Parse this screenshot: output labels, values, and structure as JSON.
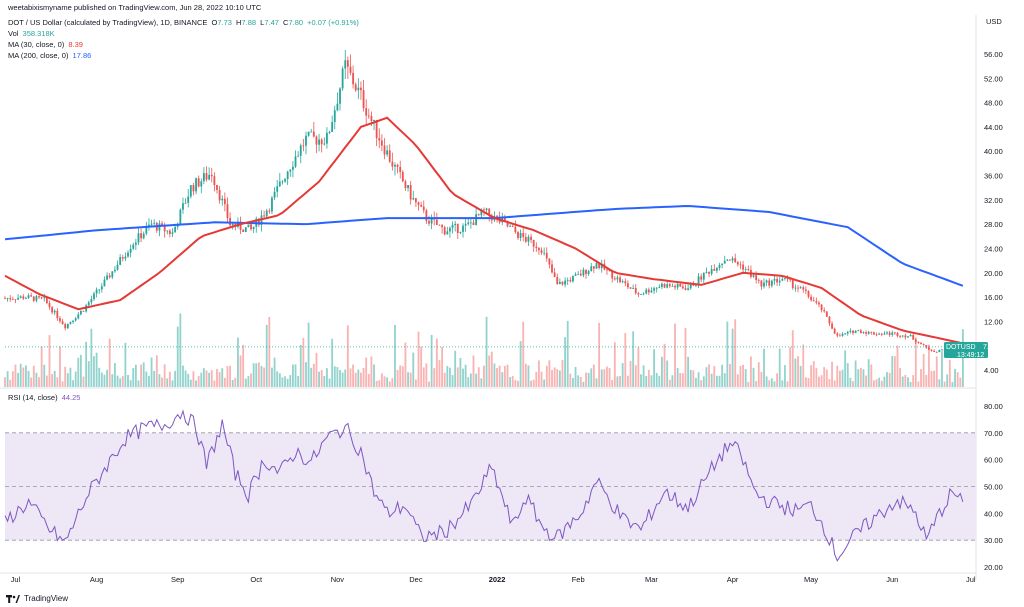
{
  "byline": "weetabixismyname published on TradingView.com, Jun 28, 2022 10:10 UTC",
  "legend": {
    "title": "DOT / US Dollar (calculated by TradingView), 1D, BINANCE",
    "o_label": "O",
    "o": "7.73",
    "h_label": "H",
    "h": "7.88",
    "l_label": "L",
    "l": "7.47",
    "c_label": "C",
    "c": "7.80",
    "change": "+0.07 (+0.91%)",
    "vol_label": "Vol",
    "vol": "358.318K",
    "ma30_label": "MA (30, close, 0)",
    "ma30": "8.39",
    "ma200_label": "MA (200, close, 0)",
    "ma200": "17.86",
    "rsi_label": "RSI (14, close)",
    "rsi": "44.25"
  },
  "price_tag": {
    "symbol": "DOTUSD",
    "price": "7.80",
    "countdown": "13:49:12"
  },
  "footer_brand": "TradingView",
  "colors": {
    "up": "#26a69a",
    "down": "#ef5350",
    "up_vol": "#80cbc4",
    "down_vol": "#f7a6a4",
    "ma30": "#e53935",
    "ma200": "#2962ff",
    "rsi_line": "#7e57c2",
    "rsi_band": "#ede7f6"
  },
  "chart_data": [
    {
      "type": "candlestick",
      "title": "DOT / US Dollar (calculated by TradingView), 1D, BINANCE",
      "currency_label": "USD",
      "y_ticks": [
        "56.00",
        "52.00",
        "48.00",
        "44.00",
        "40.00",
        "36.00",
        "32.00",
        "28.00",
        "24.00",
        "20.00",
        "16.00",
        "12.00",
        "4.00"
      ],
      "x_ticks": [
        "Jul",
        "Aug",
        "Sep",
        "Oct",
        "Nov",
        "Dec",
        "2022",
        "Feb",
        "Mar",
        "Apr",
        "May",
        "Jun",
        "Jul"
      ],
      "x_range": [
        "2021-06-27",
        "2022-07-03"
      ],
      "price_anchors": [
        [
          "2021-06-27",
          15.8
        ],
        [
          "2021-07-05",
          16.0
        ],
        [
          "2021-07-12",
          15.5
        ],
        [
          "2021-07-20",
          11.2
        ],
        [
          "2021-07-27",
          14.0
        ],
        [
          "2021-08-05",
          19.0
        ],
        [
          "2021-08-14",
          24.5
        ],
        [
          "2021-08-22",
          28.0
        ],
        [
          "2021-08-30",
          26.5
        ],
        [
          "2021-09-06",
          34.0
        ],
        [
          "2021-09-14",
          36.5
        ],
        [
          "2021-09-21",
          28.0
        ],
        [
          "2021-09-29",
          27.0
        ],
        [
          "2021-10-06",
          31.0
        ],
        [
          "2021-10-13",
          37.0
        ],
        [
          "2021-10-20",
          42.0
        ],
        [
          "2021-10-28",
          42.0
        ],
        [
          "2021-11-04",
          54.0
        ],
        [
          "2021-11-10",
          49.0
        ],
        [
          "2021-11-15",
          44.0
        ],
        [
          "2021-11-22",
          38.0
        ],
        [
          "2021-11-30",
          32.0
        ],
        [
          "2021-12-05",
          29.0
        ],
        [
          "2021-12-12",
          27.0
        ],
        [
          "2021-12-20",
          27.5
        ],
        [
          "2021-12-27",
          30.0
        ],
        [
          "2022-01-04",
          28.0
        ],
        [
          "2022-01-10",
          26.0
        ],
        [
          "2022-01-18",
          24.0
        ],
        [
          "2022-01-24",
          18.0
        ],
        [
          "2022-02-01",
          19.5
        ],
        [
          "2022-02-08",
          21.5
        ],
        [
          "2022-02-16",
          19.0
        ],
        [
          "2022-02-24",
          16.5
        ],
        [
          "2022-03-05",
          18.0
        ],
        [
          "2022-03-15",
          17.5
        ],
        [
          "2022-03-22",
          20.0
        ],
        [
          "2022-03-30",
          22.5
        ],
        [
          "2022-04-05",
          21.0
        ],
        [
          "2022-04-12",
          18.0
        ],
        [
          "2022-04-20",
          19.0
        ],
        [
          "2022-04-28",
          17.0
        ],
        [
          "2022-05-05",
          14.0
        ],
        [
          "2022-05-11",
          9.5
        ],
        [
          "2022-05-18",
          10.5
        ],
        [
          "2022-05-25",
          10.0
        ],
        [
          "2022-06-01",
          10.0
        ],
        [
          "2022-06-08",
          9.5
        ],
        [
          "2022-06-14",
          7.6
        ],
        [
          "2022-06-18",
          7.0
        ],
        [
          "2022-06-24",
          8.0
        ],
        [
          "2022-06-28",
          7.8
        ]
      ],
      "ma30_anchors": [
        [
          "2021-06-27",
          19.5
        ],
        [
          "2021-07-10",
          16.5
        ],
        [
          "2021-07-25",
          14.0
        ],
        [
          "2021-08-10",
          15.5
        ],
        [
          "2021-08-25",
          20.0
        ],
        [
          "2021-09-10",
          26.0
        ],
        [
          "2021-09-25",
          28.0
        ],
        [
          "2021-10-10",
          29.5
        ],
        [
          "2021-10-25",
          35.0
        ],
        [
          "2021-11-10",
          44.0
        ],
        [
          "2021-11-20",
          45.5
        ],
        [
          "2021-12-01",
          41.0
        ],
        [
          "2021-12-15",
          33.0
        ],
        [
          "2021-12-31",
          29.0
        ],
        [
          "2022-01-15",
          27.0
        ],
        [
          "2022-01-31",
          24.0
        ],
        [
          "2022-02-15",
          20.0
        ],
        [
          "2022-03-01",
          19.0
        ],
        [
          "2022-03-20",
          18.0
        ],
        [
          "2022-04-05",
          20.0
        ],
        [
          "2022-04-20",
          19.5
        ],
        [
          "2022-05-05",
          17.5
        ],
        [
          "2022-05-20",
          13.0
        ],
        [
          "2022-06-05",
          10.5
        ],
        [
          "2022-06-28",
          8.39
        ]
      ],
      "ma200_anchors": [
        [
          "2021-06-27",
          25.5
        ],
        [
          "2021-08-01",
          27.0
        ],
        [
          "2021-09-15",
          28.3
        ],
        [
          "2021-10-20",
          28.0
        ],
        [
          "2021-11-20",
          29.0
        ],
        [
          "2021-12-31",
          29.0
        ],
        [
          "2022-02-15",
          30.5
        ],
        [
          "2022-03-15",
          31.0
        ],
        [
          "2022-04-15",
          30.0
        ],
        [
          "2022-05-15",
          27.5
        ],
        [
          "2022-06-05",
          21.5
        ],
        [
          "2022-06-28",
          17.86
        ]
      ]
    },
    {
      "type": "line",
      "title": "RSI (14, close)",
      "y_ticks": [
        "80.00",
        "70.00",
        "60.00",
        "50.00",
        "40.00",
        "30.00",
        "20.00"
      ],
      "bands": [
        30,
        50,
        70
      ],
      "rsi_anchors": [
        [
          "2021-06-27",
          37
        ],
        [
          "2021-07-06",
          44
        ],
        [
          "2021-07-14",
          34
        ],
        [
          "2021-07-20",
          29
        ],
        [
          "2021-07-28",
          46
        ],
        [
          "2021-08-05",
          58
        ],
        [
          "2021-08-12",
          68
        ],
        [
          "2021-08-20",
          72
        ],
        [
          "2021-08-27",
          73
        ],
        [
          "2021-09-03",
          78
        ],
        [
          "2021-09-08",
          72
        ],
        [
          "2021-09-12",
          58
        ],
        [
          "2021-09-18",
          73
        ],
        [
          "2021-09-23",
          55
        ],
        [
          "2021-09-28",
          47
        ],
        [
          "2021-10-04",
          60
        ],
        [
          "2021-10-10",
          55
        ],
        [
          "2021-10-16",
          63
        ],
        [
          "2021-10-22",
          59
        ],
        [
          "2021-10-28",
          68
        ],
        [
          "2021-11-04",
          72
        ],
        [
          "2021-11-10",
          63
        ],
        [
          "2021-11-15",
          48
        ],
        [
          "2021-11-20",
          40
        ],
        [
          "2021-11-27",
          43
        ],
        [
          "2021-12-03",
          31
        ],
        [
          "2021-12-12",
          33
        ],
        [
          "2021-12-22",
          43
        ],
        [
          "2021-12-30",
          57
        ],
        [
          "2022-01-07",
          35
        ],
        [
          "2022-01-12",
          46
        ],
        [
          "2022-01-19",
          34
        ],
        [
          "2022-01-24",
          31
        ],
        [
          "2022-02-02",
          40
        ],
        [
          "2022-02-08",
          52
        ],
        [
          "2022-02-18",
          38
        ],
        [
          "2022-02-25",
          34
        ],
        [
          "2022-03-06",
          48
        ],
        [
          "2022-03-15",
          42
        ],
        [
          "2022-03-25",
          58
        ],
        [
          "2022-03-31",
          66
        ],
        [
          "2022-04-04",
          62
        ],
        [
          "2022-04-10",
          47
        ],
        [
          "2022-04-16",
          44
        ],
        [
          "2022-04-25",
          41
        ],
        [
          "2022-05-01",
          43
        ],
        [
          "2022-05-06",
          35
        ],
        [
          "2022-05-11",
          24
        ],
        [
          "2022-05-18",
          32
        ],
        [
          "2022-05-25",
          38
        ],
        [
          "2022-06-03",
          45
        ],
        [
          "2022-06-10",
          40
        ],
        [
          "2022-06-14",
          30
        ],
        [
          "2022-06-19",
          40
        ],
        [
          "2022-06-24",
          48
        ],
        [
          "2022-06-28",
          44.25
        ]
      ]
    }
  ]
}
